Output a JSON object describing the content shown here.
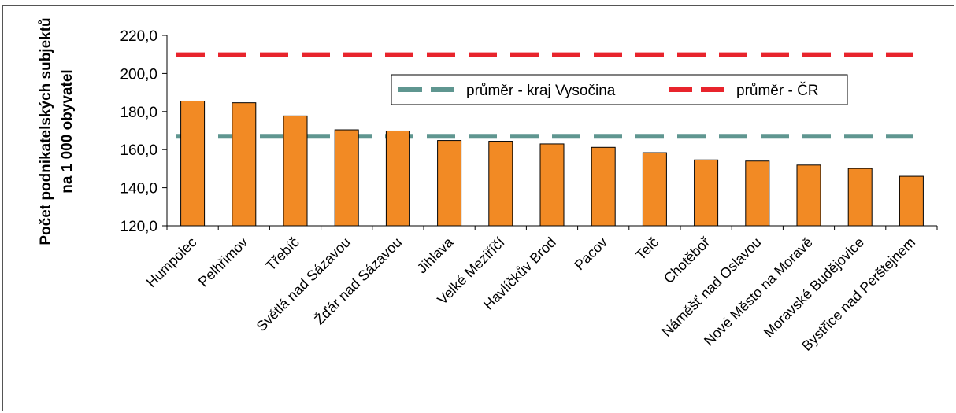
{
  "chart_data": {
    "type": "bar",
    "title": "",
    "ylabel_lines": [
      "Počet podnikatelských subjektů",
      "na 1 000 obyvatel"
    ],
    "xlabel": "",
    "ylim": [
      120,
      220
    ],
    "yticks": [
      120,
      140,
      160,
      180,
      200,
      220
    ],
    "ytick_labels": [
      "120,0",
      "140,0",
      "160,0",
      "180,0",
      "200,0",
      "220,0"
    ],
    "grid": false,
    "legend_position": "top-right",
    "categories": [
      "Humpolec",
      "Pelhřimov",
      "Třebíč",
      "Světlá nad Sázavou",
      "Žďár nad Sázavou",
      "Jihlava",
      "Velké Meziříčí",
      "Havlíčkův Brod",
      "Pacov",
      "Telč",
      "Chotěboř",
      "Náměšť nad Oslavou",
      "Nové Město na Moravě",
      "Moravské Budějovice",
      "Bystřice nad Perštejnem"
    ],
    "series": [
      {
        "values": [
          185.5,
          184.6,
          177.7,
          170.4,
          169.8,
          164.8,
          164.4,
          163.0,
          161.2,
          158.4,
          154.6,
          154.0,
          151.9,
          150.1,
          146.0
        ],
        "color": "#f28a24"
      }
    ],
    "reference_lines": [
      {
        "name": "průměr - kraj Vysočina",
        "value": 167.0,
        "color": "#5f9690"
      },
      {
        "name": "průměr - ČR",
        "value": 209.8,
        "color": "#e8242c"
      }
    ]
  }
}
